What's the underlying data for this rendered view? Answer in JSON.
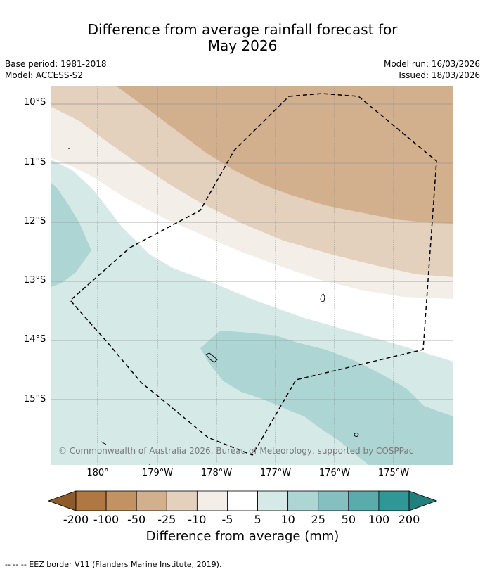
{
  "title_line1": "Difference from average rainfall forecast for",
  "title_line2": "May 2026",
  "meta_left": [
    "Base period: 1981-2018",
    "Model: ACCESS-S2"
  ],
  "meta_right": [
    "Model run: 16/03/2026",
    "Issued: 18/03/2026"
  ],
  "lat_labels": [
    "10°S",
    "11°S",
    "12°S",
    "13°S",
    "14°S",
    "15°S"
  ],
  "lon_labels": [
    "180°",
    "179°W",
    "178°W",
    "177°W",
    "176°W",
    "175°W"
  ],
  "copyright": "© Commonwealth of Australia 2026, Bureau of Meteorology, supported by COSPPac",
  "colorbar": {
    "ticks": [
      "-200",
      "-100",
      "-50",
      "-25",
      "-10",
      "-5",
      "5",
      "10",
      "25",
      "50",
      "100",
      "200"
    ],
    "colors": [
      "#8e5a2a",
      "#b07840",
      "#c29262",
      "#d2b08e",
      "#e3d0bd",
      "#f3eee8",
      "#ffffff",
      "#d5e9e7",
      "#add5d4",
      "#85c0c0",
      "#5aabab",
      "#2f9896",
      "#217f7e"
    ],
    "label": "Difference from average (mm)"
  },
  "footer": "-- -- -- EEZ border V11 (Flanders Marine Institute, 2019)."
}
